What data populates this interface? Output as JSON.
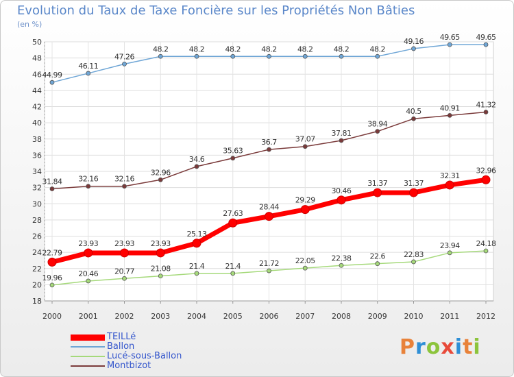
{
  "title": "Evolution du Taux de Taxe Foncière sur les Propriétés Non Bâties",
  "unit_label": "(en %)",
  "logo": {
    "text": "Proxiti",
    "letters": [
      {
        "char": "P",
        "color": "#e8823a"
      },
      {
        "char": "r",
        "color": "#2f8fd6"
      },
      {
        "char": "o",
        "color": "#8cc43c"
      },
      {
        "char": "x",
        "color": "#e84a3a"
      },
      {
        "char": "i",
        "color": "#2f8fd6"
      },
      {
        "char": "t",
        "color": "#e8823a"
      },
      {
        "char": "i",
        "color": "#8cc43c"
      }
    ]
  },
  "chart_data": {
    "type": "line",
    "title": "Evolution du Taux de Taxe Foncière sur les Propriétés Non Bâties",
    "ylabel": "(en %)",
    "xlabel": "",
    "ylim": [
      18,
      50
    ],
    "y_ticks": [
      18,
      20,
      22,
      24,
      26,
      28,
      30,
      32,
      34,
      36,
      38,
      40,
      42,
      44,
      46,
      48,
      50
    ],
    "grid": true,
    "legend_position": "bottom-left",
    "x": [
      "2000",
      "2001",
      "2002",
      "2003",
      "2004",
      "2005",
      "2006",
      "2007",
      "2008",
      "2009",
      "2010",
      "2011",
      "2012"
    ],
    "series": [
      {
        "name": "TEILLé",
        "color": "#ff0000",
        "values": [
          22.79,
          23.93,
          23.93,
          23.93,
          25.13,
          27.63,
          28.44,
          29.29,
          30.46,
          31.37,
          31.37,
          32.31,
          32.96
        ],
        "labels": [
          "22.79",
          "23.93",
          "23.93",
          "23.93",
          "25.13",
          "27.63",
          "28.44",
          "29.29",
          "30.46",
          "31.37",
          "31.37",
          "32.31",
          "32.96"
        ]
      },
      {
        "name": "Ballon",
        "color": "#6fa6d6",
        "values": [
          44.99,
          46.11,
          47.26,
          48.2,
          48.2,
          48.2,
          48.2,
          48.2,
          48.2,
          48.2,
          49.16,
          49.65,
          49.65
        ],
        "labels": [
          "44.99",
          "46.11",
          "47.26",
          "48.2",
          "48.2",
          "48.2",
          "48.2",
          "48.2",
          "48.2",
          "48.2",
          "49.16",
          "49.65",
          "49.65"
        ]
      },
      {
        "name": "Lucé-sous-Ballon",
        "color": "#a5d97a",
        "values": [
          19.96,
          20.46,
          20.77,
          21.08,
          21.4,
          21.4,
          21.72,
          22.05,
          22.38,
          22.6,
          22.83,
          23.94,
          24.18
        ],
        "labels": [
          "19.96",
          "20.46",
          "20.77",
          "21.08",
          "21.4",
          "21.4",
          "21.72",
          "22.05",
          "22.38",
          "22.6",
          "22.83",
          "23.94",
          "24.18"
        ]
      },
      {
        "name": "Montbizot",
        "color": "#7a3a3a",
        "values": [
          31.84,
          32.16,
          32.16,
          32.96,
          34.6,
          35.63,
          36.7,
          37.07,
          37.81,
          38.94,
          40.5,
          40.91,
          41.32
        ],
        "labels": [
          "31.84",
          "32.16",
          "32.16",
          "32.96",
          "34.6",
          "35.63",
          "36.7",
          "37.07",
          "37.81",
          "38.94",
          "40.5",
          "40.91",
          "41.32"
        ]
      }
    ]
  }
}
